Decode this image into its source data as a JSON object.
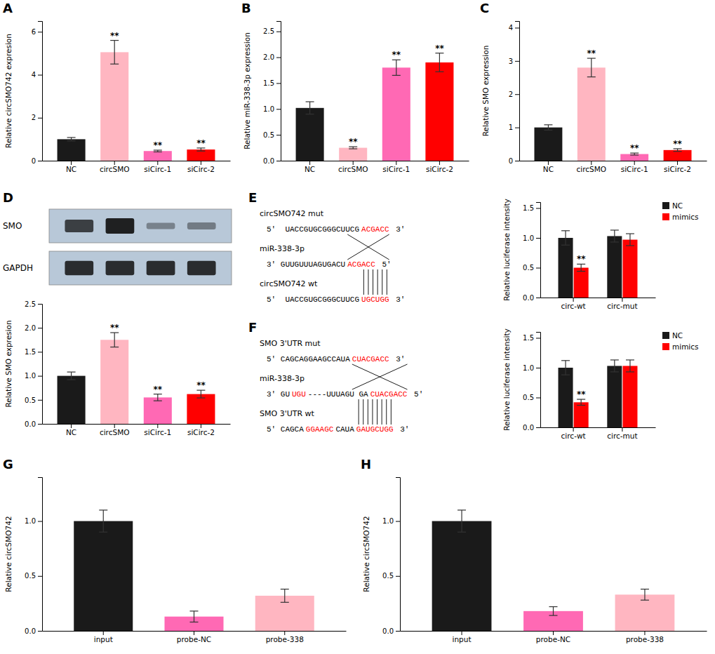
{
  "chart_data": [
    {
      "type": "bar",
      "title": "A",
      "categories": [
        "NC",
        "circSMO",
        "siCirc-1",
        "siCirc-2"
      ],
      "values": [
        1.0,
        5.05,
        0.45,
        0.52
      ],
      "errors": [
        0.08,
        0.55,
        0.04,
        0.07
      ],
      "colors": [
        "#1a1a1a",
        "#ffb6c1",
        "#ff69b4",
        "#ff0000"
      ],
      "ylabel": "Relative circSMO742 expresion",
      "ylim": [
        0,
        6.5
      ],
      "yticks": [
        0,
        2,
        4,
        6
      ],
      "annotations": [
        null,
        "**",
        "**",
        "**"
      ]
    },
    {
      "type": "bar",
      "title": "B",
      "categories": [
        "NC",
        "circSMO",
        "siCirc-1",
        "siCirc-2"
      ],
      "values": [
        1.02,
        0.25,
        1.8,
        1.9
      ],
      "errors": [
        0.12,
        0.02,
        0.15,
        0.18
      ],
      "colors": [
        "#1a1a1a",
        "#ffb6c1",
        "#ff69b4",
        "#ff0000"
      ],
      "ylabel": "Relative miR-338-3p expression",
      "ylim": [
        0,
        2.7
      ],
      "yticks": [
        {
          "value": 0.0,
          "label": "0.0"
        },
        0.5,
        {
          "value": 1.0,
          "label": "1.0"
        },
        1.5,
        {
          "value": 2.0,
          "label": "2.0"
        },
        2.5
      ],
      "annotations": [
        null,
        "**",
        "**",
        "**"
      ]
    },
    {
      "type": "bar",
      "title": "C",
      "categories": [
        "NC",
        "circSMO",
        "siCirc-1",
        "siCirc-2"
      ],
      "values": [
        1.0,
        2.8,
        0.2,
        0.32
      ],
      "errors": [
        0.08,
        0.28,
        0.03,
        0.04
      ],
      "colors": [
        "#1a1a1a",
        "#ffb6c1",
        "#ff69b4",
        "#ff0000"
      ],
      "ylabel": "Relative SMO expression",
      "ylim": [
        0,
        4.2
      ],
      "yticks": [
        0,
        1,
        2,
        3,
        4
      ],
      "annotations": [
        null,
        "**",
        "**",
        "**"
      ]
    },
    {
      "type": "blot",
      "title": "D",
      "series": [
        {
          "name": "SMO",
          "values": [
            0.75,
            0.92,
            0.38,
            0.42
          ]
        },
        {
          "name": "GAPDH",
          "values": [
            0.85,
            0.85,
            0.85,
            0.85
          ]
        }
      ],
      "color": "#b8c8d8"
    },
    {
      "type": "bar",
      "categories": [
        "NC",
        "circSMO",
        "siCirc-1",
        "siCirc-2"
      ],
      "values": [
        1.0,
        1.75,
        0.55,
        0.62
      ],
      "errors": [
        0.08,
        0.15,
        0.07,
        0.08
      ],
      "colors": [
        "#1a1a1a",
        "#ffb6c1",
        "#ff69b4",
        "#ff0000"
      ],
      "ylabel": "Relative SMO expresion",
      "ylim": [
        0,
        2.5
      ],
      "yticks": [
        {
          "value": 0.0,
          "label": "0.0"
        },
        0.5,
        {
          "value": 1.0,
          "label": "1.0"
        },
        1.5,
        {
          "value": 2.0,
          "label": "2.0"
        },
        2.5
      ],
      "annotations": [
        null,
        "**",
        "**",
        "**"
      ]
    },
    {
      "type": "sequence",
      "title": "E",
      "annotations": [
        [
          {
            "text": "circSMO742 mut"
          }
        ],
        [
          {
            "text": "5'  UACCGUGCGGGCUUCG"
          },
          {
            "text": "ACGACC",
            "color": "red"
          },
          {
            "text": " 3'"
          }
        ],
        [
          {
            "text": "miR-338-3p"
          }
        ],
        [
          {
            "text": "3' GUUGUUUAGUGACU"
          },
          {
            "text": "ACGACC",
            "color": "red"
          },
          {
            "text": " 5'"
          }
        ],
        [
          {
            "text": "circSMO742 wt"
          }
        ],
        [
          {
            "text": "5'  UACCGUGCGGGCUUCG"
          },
          {
            "text": "UGCUGG",
            "color": "red"
          },
          {
            "text": " 3'"
          }
        ]
      ]
    },
    {
      "type": "bar",
      "categories": [
        "circ-wt",
        "circ-mut"
      ],
      "series": [
        {
          "name": "NC",
          "color": "#1a1a1a",
          "values": [
            1.0,
            1.03
          ],
          "errors": [
            0.12,
            0.1
          ]
        },
        {
          "name": "mimics",
          "color": "#ff0000",
          "values": [
            0.5,
            0.97
          ],
          "errors": [
            0.06,
            0.1
          ],
          "annotations": [
            "**",
            null
          ]
        }
      ],
      "ylabel": "Relative luciferase intensity",
      "ylim": [
        0,
        1.6
      ],
      "yticks": [
        {
          "value": 0.0,
          "label": "0.0"
        },
        0.5,
        {
          "value": 1.0,
          "label": "1.0"
        },
        1.5
      ],
      "legend": "upper right"
    },
    {
      "type": "sequence",
      "title": "F",
      "annotations": [
        [
          {
            "text": "SMO 3'UTR mut"
          }
        ],
        [
          {
            "text": "5' CAGCAGGAAGCCAUA"
          },
          {
            "text": "CUACGACC",
            "color": "red"
          },
          {
            "text": " 3'"
          }
        ],
        [
          {
            "text": "miR-338-3p"
          }
        ],
        [
          {
            "text": "3' GU"
          },
          {
            "text": "UGU",
            "color": "red"
          },
          {
            "text": "----UUUAGU GA"
          },
          {
            "text": "CUACGACC",
            "color": "red"
          },
          {
            "text": " 5'"
          }
        ],
        [
          {
            "text": "SMO 3'UTR wt"
          }
        ],
        [
          {
            "text": "5' CAGCA"
          },
          {
            "text": "GGAAGC",
            "color": "red"
          },
          {
            "text": "CAUA"
          },
          {
            "text": "GAUGCUGG",
            "color": "red"
          },
          {
            "text": " 3'"
          }
        ]
      ]
    },
    {
      "type": "bar",
      "categories": [
        "circ-wt",
        "circ-mut"
      ],
      "series": [
        {
          "name": "NC",
          "color": "#1a1a1a",
          "values": [
            1.0,
            1.03
          ],
          "errors": [
            0.12,
            0.1
          ]
        },
        {
          "name": "mimics",
          "color": "#ff0000",
          "values": [
            0.42,
            1.03
          ],
          "errors": [
            0.05,
            0.1
          ],
          "annotations": [
            "**",
            null
          ]
        }
      ],
      "ylabel": "Relative luciferase intensity",
      "ylim": [
        0,
        1.6
      ],
      "yticks": [
        {
          "value": 0.0,
          "label": "0.0"
        },
        0.5,
        {
          "value": 1.0,
          "label": "1.0"
        },
        1.5
      ],
      "legend": "upper right"
    },
    {
      "type": "bar",
      "title": "G",
      "categories": [
        "input",
        "probe-NC",
        "probe-338"
      ],
      "values": [
        1.0,
        0.13,
        0.32
      ],
      "errors": [
        0.1,
        0.05,
        0.06
      ],
      "colors": [
        "#1a1a1a",
        "#ff69b4",
        "#ffb6c1"
      ],
      "ylabel": "Relative circSMO742",
      "ylim": [
        0,
        1.4
      ],
      "yticks": [
        {
          "value": 0.0,
          "label": "0.0"
        },
        0.5,
        {
          "value": 1.0,
          "label": "1.0"
        }
      ]
    },
    {
      "type": "bar",
      "title": "H",
      "categories": [
        "input",
        "probe-NC",
        "probe-338"
      ],
      "values": [
        1.0,
        0.18,
        0.33
      ],
      "errors": [
        0.1,
        0.04,
        0.05
      ],
      "colors": [
        "#1a1a1a",
        "#ff69b4",
        "#ffb6c1"
      ],
      "ylabel": "Relative circSMO742",
      "ylim": [
        0,
        1.4
      ],
      "yticks": [
        {
          "value": 0.0,
          "label": "0.0"
        },
        0.5,
        {
          "value": 1.0,
          "label": "1.0"
        }
      ]
    }
  ]
}
